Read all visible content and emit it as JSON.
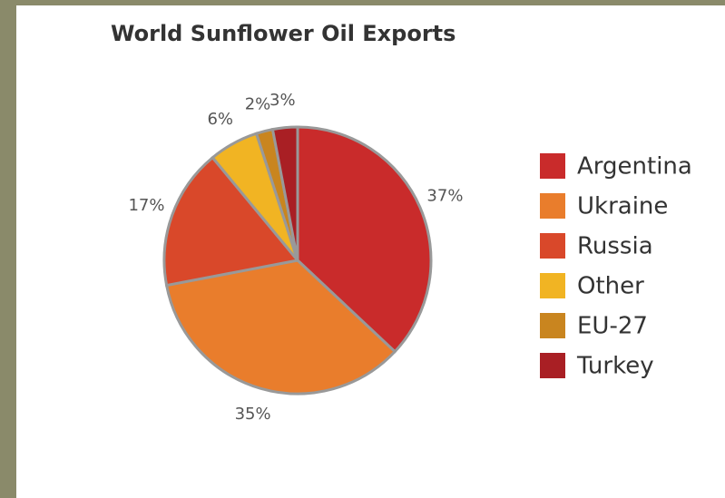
{
  "chart_data": {
    "type": "pie",
    "title": "World Sunflower Oil Exports",
    "categories": [
      "Argentina",
      "Ukraine",
      "Russia",
      "Other",
      "EU-27",
      "Turkey"
    ],
    "values": [
      37,
      35,
      17,
      6,
      2,
      3
    ],
    "value_labels": [
      "37%",
      "35%",
      "17%",
      "6%",
      "2%",
      "3%"
    ],
    "colors": [
      "#c92b2b",
      "#e97d2c",
      "#d9482a",
      "#f1b423",
      "#c9851f",
      "#a91f24"
    ],
    "legend": "right"
  }
}
